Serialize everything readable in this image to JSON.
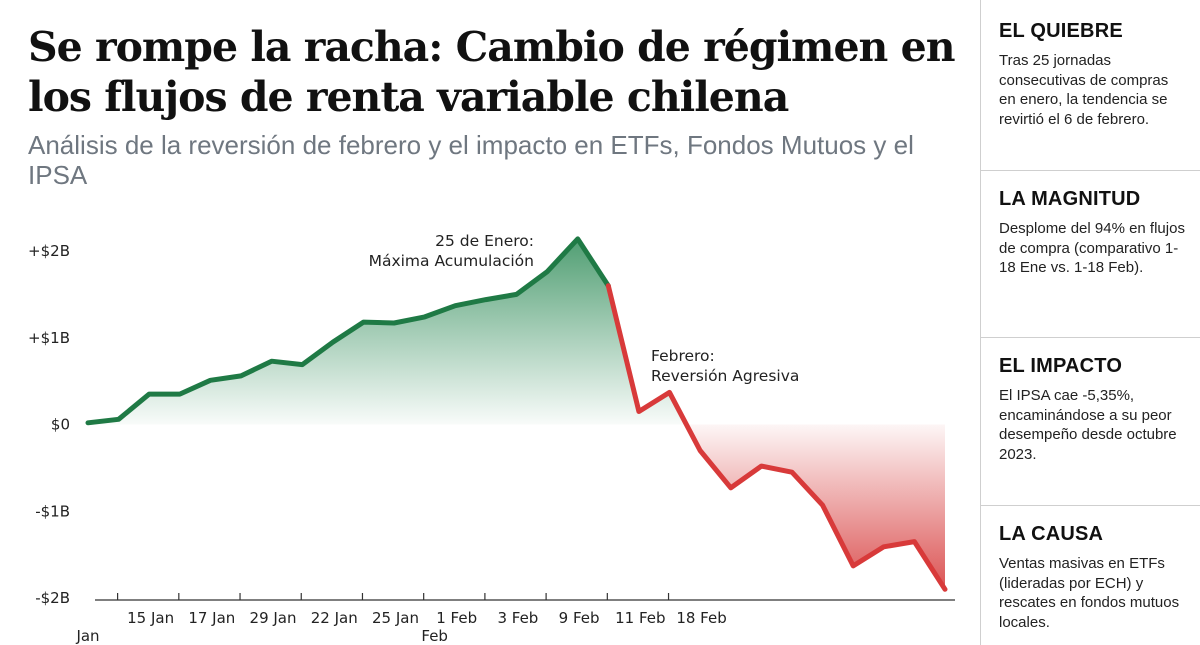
{
  "header": {
    "title": "Se rompe la racha: Cambio de régimen en los flujos de renta variable chilena",
    "subtitle": "Análisis de la reversión de febrero y el impacto en ETFs, Fondos Mutuos y el IPSA"
  },
  "chart_data": {
    "type": "area",
    "title": "",
    "xlabel": "",
    "ylabel": "",
    "ylim": [
      -2,
      2
    ],
    "y_unit": "USD billions",
    "y_ticks": [
      {
        "value": 2,
        "label": "+$2B"
      },
      {
        "value": 1,
        "label": "+$1B"
      },
      {
        "value": 0,
        "label": "$0"
      },
      {
        "value": -1,
        "label": "-$1B"
      },
      {
        "value": -2,
        "label": "-$2B"
      }
    ],
    "x_ticks": [
      {
        "index": 0,
        "label": "Jan",
        "mark": false
      },
      {
        "index": 1,
        "label": "15 Jan",
        "mark": true
      },
      {
        "index": 3,
        "label": "17 Jan",
        "mark": true
      },
      {
        "index": 5,
        "label": "29 Jan",
        "mark": true
      },
      {
        "index": 7,
        "label": "22 Jan",
        "mark": true
      },
      {
        "index": 9,
        "label": "25 Jan",
        "mark": true
      },
      {
        "index": 11,
        "label": "1 Feb",
        "mark": true
      },
      {
        "index": 13,
        "label": "3 Feb",
        "mark": true
      },
      {
        "index": 15,
        "label": "9 Feb",
        "mark": true
      },
      {
        "index": 17,
        "label": "11 Feb",
        "mark": true
      },
      {
        "index": 19,
        "label": "18 Feb",
        "mark": true
      }
    ],
    "x_extra_labels": [
      {
        "index": 11,
        "label": "Feb"
      }
    ],
    "series": [
      {
        "phase": "Enero",
        "color": "#1f7a45",
        "values": [
          0.02,
          0.06,
          0.35,
          0.35,
          0.51,
          0.56,
          0.73,
          0.69,
          0.95,
          1.18,
          1.17,
          1.24,
          1.37,
          1.44,
          1.5,
          1.76,
          2.14,
          1.6
        ]
      },
      {
        "phase": "Febrero",
        "color": "#d83a3a",
        "values": [
          1.6,
          0.15,
          0.37,
          -0.3,
          -0.73,
          -0.48,
          -0.55,
          -0.93,
          -1.63,
          -1.41,
          -1.35,
          -1.9
        ]
      }
    ],
    "x_positions_jan": [
      0,
      1,
      2,
      3,
      4,
      5,
      6,
      7,
      8,
      9,
      10,
      11,
      12,
      13,
      14,
      15,
      16,
      17
    ],
    "x_positions_feb": [
      17,
      18,
      19,
      20,
      21,
      22,
      23,
      24,
      25,
      26,
      27,
      28
    ],
    "annotations": [
      {
        "lines": [
          "25 de Enero:",
          "Máxima Acumulación"
        ]
      },
      {
        "lines": [
          "Febrero:",
          "Reversión Agresiva"
        ]
      }
    ],
    "colors": {
      "positive": "#1f7a45",
      "negative": "#d83a3a",
      "positive_fill": "#2e8b57",
      "negative_fill": "#d63a3a"
    },
    "grid": false,
    "legend": "none"
  },
  "sidebar": {
    "panels": [
      {
        "title": "EL QUIEBRE",
        "text": "Tras 25 jornadas consecutivas de compras en enero, la tendencia se revirtió el 6 de febrero."
      },
      {
        "title": "LA MAGNITUD",
        "text": "Desplome del 94% en flujos de compra (comparativo 1-18 Ene vs. 1-18 Feb)."
      },
      {
        "title": "EL IMPACTO",
        "text": "El IPSA cae -5,35%, encaminándose a su peor desempeño desde octubre 2023."
      },
      {
        "title": "LA CAUSA",
        "text": "Ventas masivas en ETFs (lideradas por ECH) y rescates en fondos mutuos locales."
      }
    ]
  }
}
